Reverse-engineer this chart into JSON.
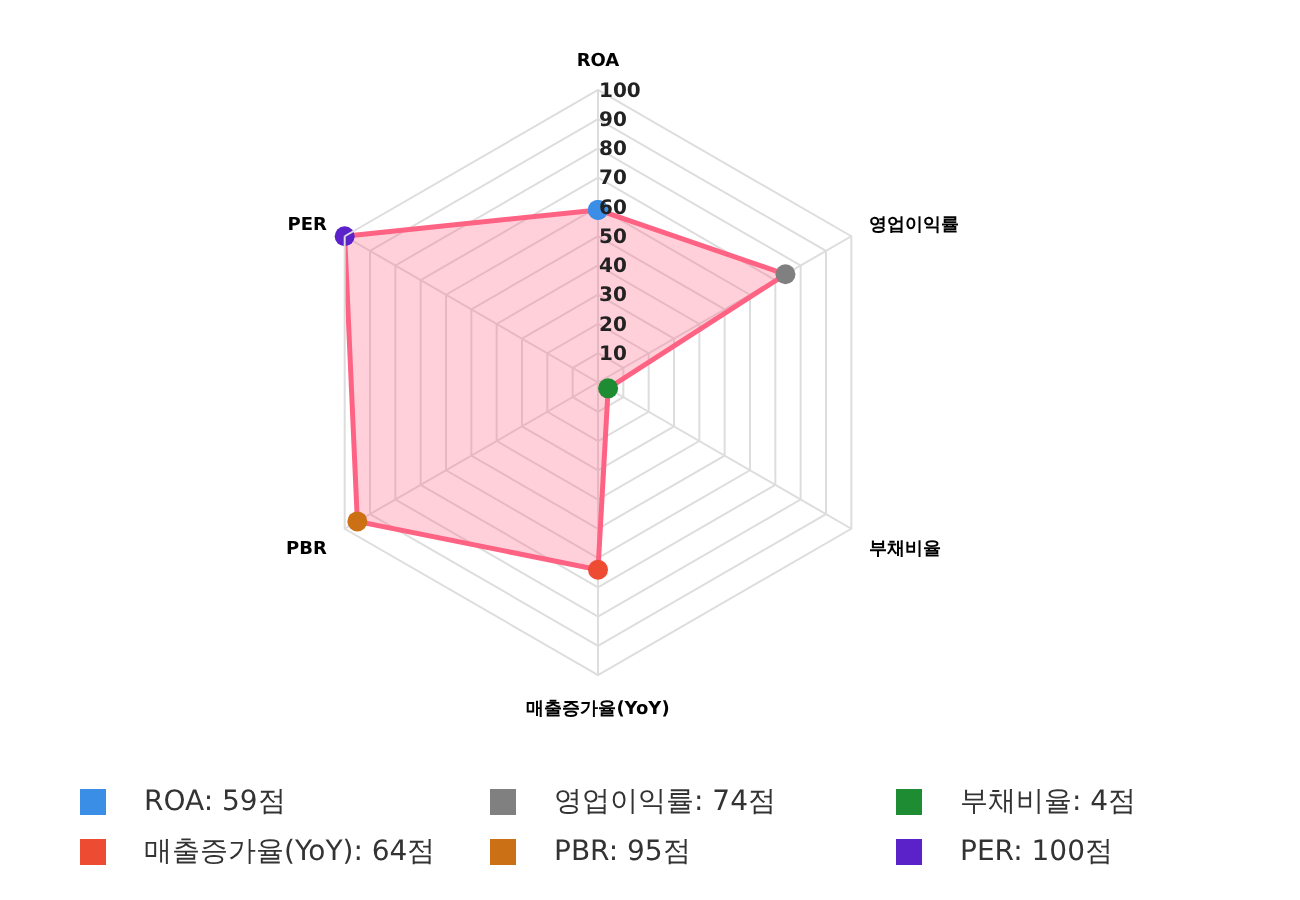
{
  "chart_data": {
    "type": "radar",
    "categories": [
      "ROA",
      "영업이익률",
      "부채비율",
      "매출증가율(YoY)",
      "PBR",
      "PER"
    ],
    "series": [
      {
        "color": "#ff6384",
        "values": [
          59,
          74,
          4,
          64,
          95,
          100
        ],
        "colors": [
          "#3a8ee6",
          "#808080",
          "#1e8c32",
          "#ee4b33",
          "#cc7016",
          "#5a22c8"
        ]
      }
    ],
    "annotations": [
      "ROA: 59점",
      "영업이익률: 74점",
      "부채비율: 4점",
      "매출증가율(YoY): 64점",
      "PBR: 95점",
      "PER: 100점"
    ],
    "ylim": [
      0,
      100
    ],
    "yticks": [
      10,
      20,
      30,
      40,
      50,
      60,
      70,
      80,
      90,
      100
    ],
    "grid": true,
    "marker": "circle"
  }
}
